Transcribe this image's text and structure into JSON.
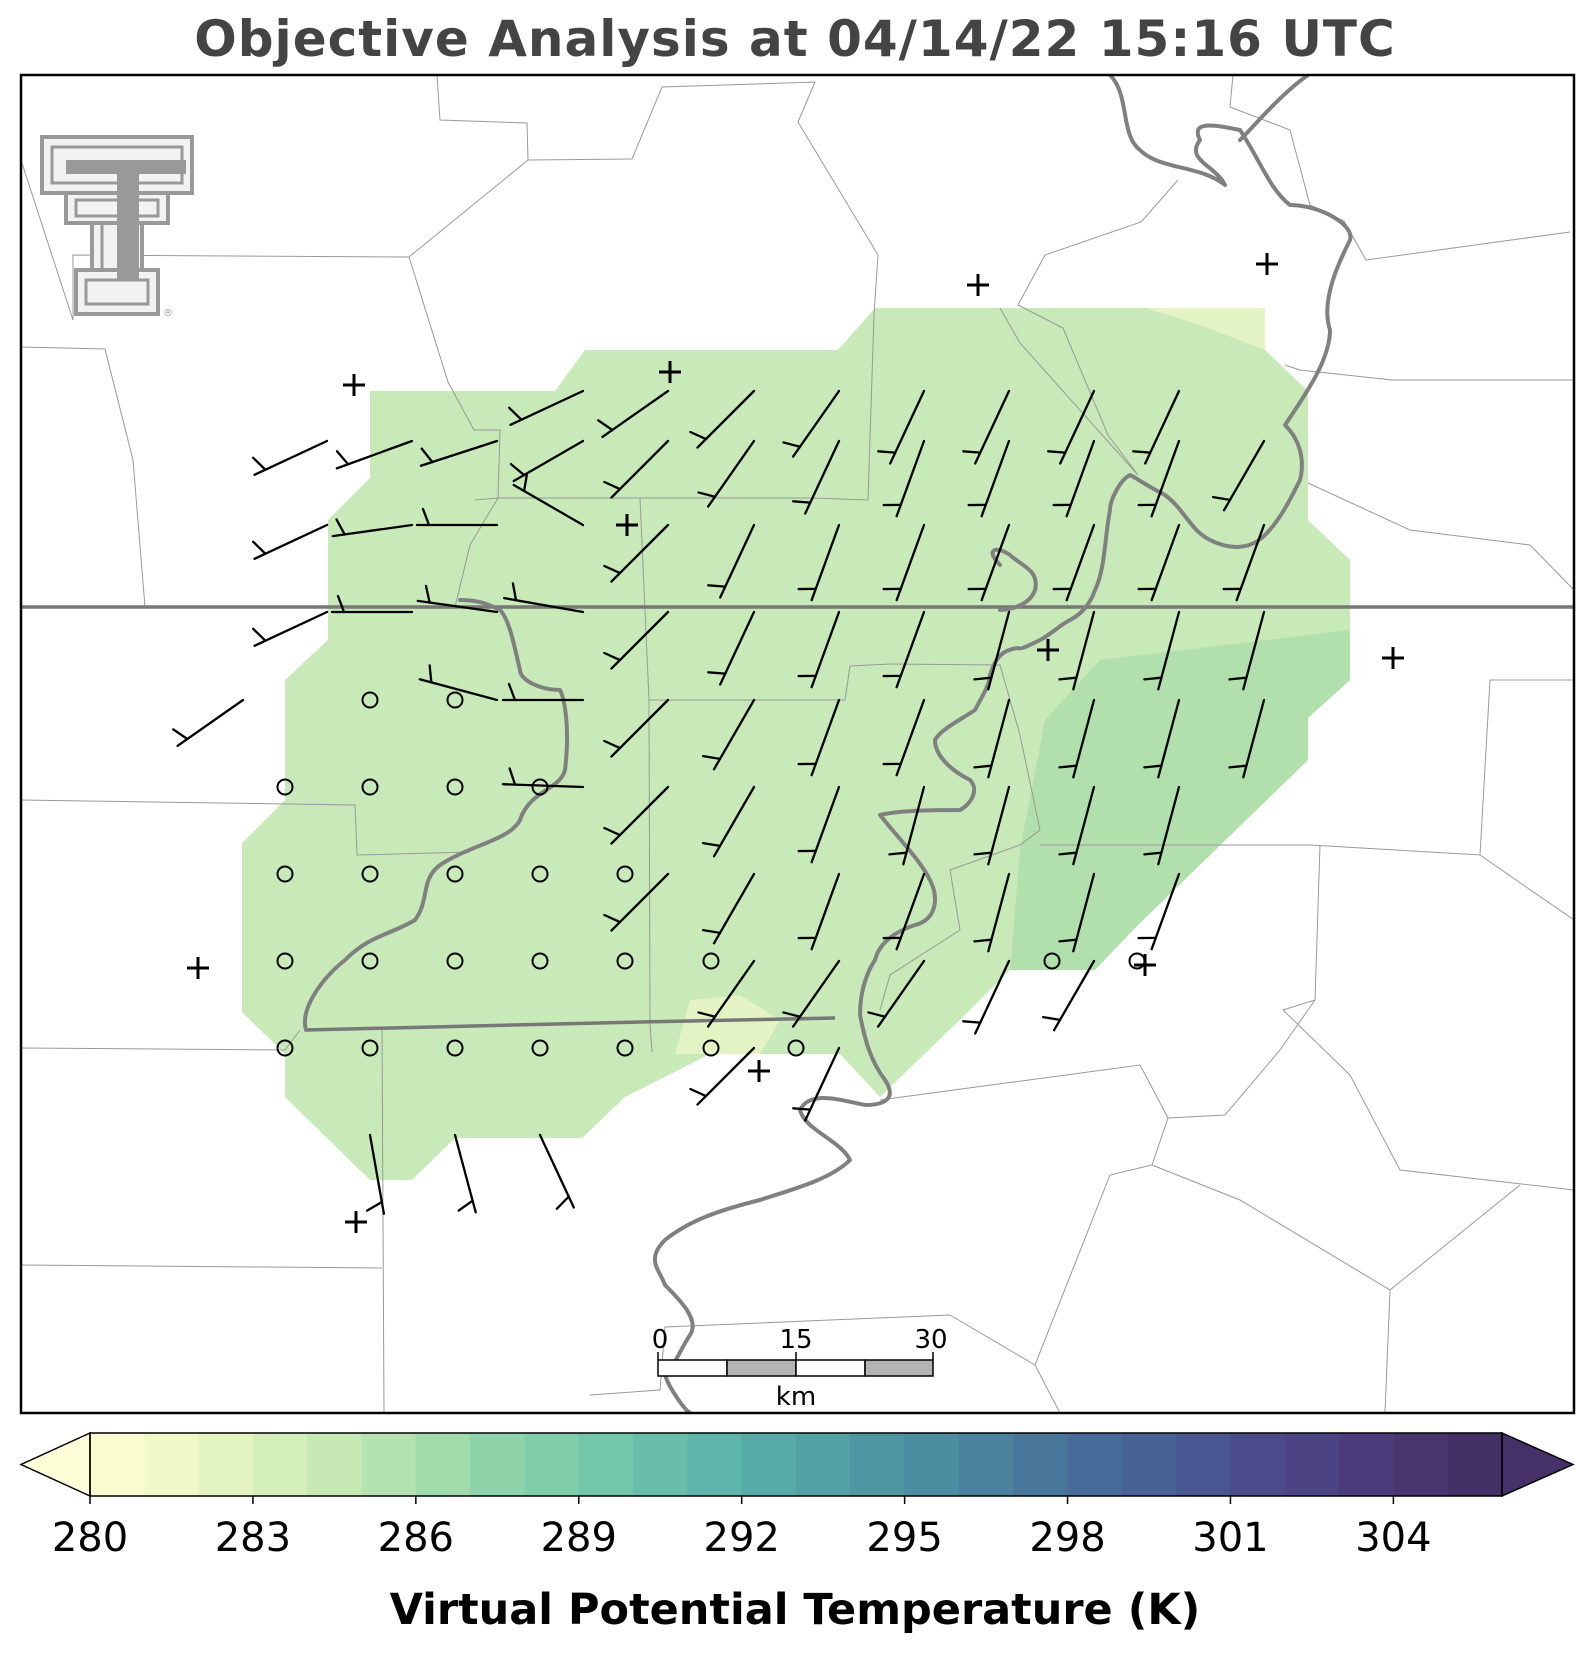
{
  "title": "Objective Analysis at 04/14/22 15:16 UTC",
  "colorbar": {
    "label": "Virtual Potential Temperature (K)",
    "ticks": [
      "280",
      "283",
      "286",
      "289",
      "292",
      "295",
      "298",
      "301",
      "304"
    ],
    "min": 280,
    "max": 306,
    "step": 1,
    "extend": "both",
    "colors": [
      "#fbfbd0",
      "#f1f8c8",
      "#e3f3bf",
      "#d3eeb9",
      "#c6e9b4",
      "#b3e3ae",
      "#a0dbab",
      "#8ed3a9",
      "#80cdaa",
      "#74c6aa",
      "#68beaa",
      "#5eb5a9",
      "#56aba7",
      "#52a1a5",
      "#4f97a3",
      "#4c8da1",
      "#4a829e",
      "#49779c",
      "#486c99",
      "#486196",
      "#485691",
      "#4a4b8b",
      "#4b4383",
      "#4b3c7b",
      "#493671",
      "#453065"
    ],
    "under_color": "#fdfdd8",
    "over_color": "#453068"
  },
  "scale_bar": {
    "labels": [
      "0",
      "15",
      "30"
    ],
    "unit": "km"
  },
  "colors": {
    "field_main": "#c8e9b8",
    "field_warm": "#b2e0ad",
    "field_cool": "#e4f3c4",
    "river": "#808080",
    "county": "#999999",
    "state_line": "#777777",
    "logo": "#999999"
  },
  "logo": {
    "name": "texas-tech-double-t-logo"
  },
  "markers": {
    "station_plus_count": 12,
    "calm_circle_count": 29,
    "wind_barb_count": 106
  }
}
